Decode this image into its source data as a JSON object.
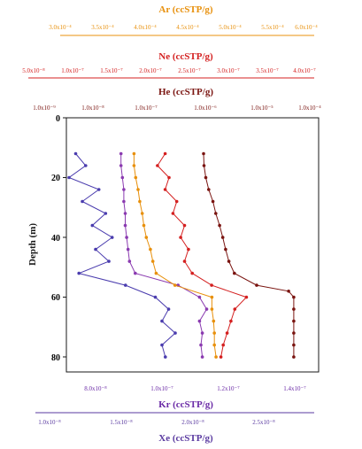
{
  "chart_data": {
    "type": "line",
    "y_axis": {
      "label": "Depth (m)",
      "ylim": [
        0,
        85
      ],
      "ticks": [
        "0",
        "20",
        "40",
        "60",
        "80"
      ],
      "inverted": true
    },
    "top_axes": [
      {
        "title": "Ar (ccSTP/g)",
        "color": "#e8900c",
        "ticks": [
          "3.0x10⁻⁴",
          "3.5x10⁻⁴",
          "4.0x10⁻⁴",
          "4.5x10⁻⁴",
          "5.0x10⁻⁴",
          "5.5x10⁻⁴",
          "6.0x10⁻⁴"
        ]
      },
      {
        "title": "Ne (ccSTP/g)",
        "color": "#d42020",
        "ticks": [
          "5.0x10⁻⁸",
          "1.0x10⁻⁷",
          "1.5x10⁻⁷",
          "2.0x10⁻⁷",
          "2.5x10⁻⁷",
          "3.0x10⁻⁷",
          "3.5x10⁻⁷",
          "4.0x10⁻⁷"
        ]
      },
      {
        "title": "He (ccSTP/g)",
        "color": "#7a1410",
        "ticks": [
          "1.0x10⁻⁹",
          "1.0x10⁻⁸",
          "1.0x10⁻⁷",
          "1.0x10⁻⁶",
          "1.0x10⁻⁵",
          "1.0x10⁻⁴"
        ]
      }
    ],
    "bottom_axes": [
      {
        "title": "Kr (ccSTP/g)",
        "color": "#6a2aa6",
        "ticks": [
          "8.0x10⁻⁸",
          "1.0x10⁻⁷",
          "1.2x10⁻⁷",
          "1.4x10⁻⁷"
        ]
      },
      {
        "title": "Xe (ccSTP/g)",
        "color": "#5a3aa0",
        "ticks": [
          "1.0x10⁻⁸",
          "1.5x10⁻⁸",
          "2.0x10⁻⁸",
          "2.5x10⁻⁸"
        ]
      }
    ],
    "series": [
      {
        "color": "#4a3cae",
        "depth_m": [
          12,
          16,
          20,
          24,
          28,
          32,
          36,
          40,
          44,
          48,
          52,
          56,
          60,
          64,
          68,
          72,
          76,
          80
        ],
        "kr_ccstp_per_g": [
          7.4e-08,
          7.7e-08,
          7.2e-08,
          8.1e-08,
          7.6e-08,
          8.3e-08,
          7.9e-08,
          8.5e-08,
          8e-08,
          8.4e-08,
          7.5e-08,
          8.9e-08,
          9.8e-08,
          1.02e-07,
          1e-07,
          1.04e-07,
          1e-07,
          1.01e-07
        ]
      },
      {
        "color": "#8a3ab0",
        "depth_m": [
          12,
          16,
          20,
          24,
          28,
          32,
          36,
          40,
          44,
          48,
          52,
          56,
          60,
          64,
          68,
          72,
          76,
          80
        ],
        "xe_ccstp_per_g": [
          1.5e-08,
          1.5e-08,
          1.51e-08,
          1.52e-08,
          1.52e-08,
          1.53e-08,
          1.53e-08,
          1.54e-08,
          1.55e-08,
          1.56e-08,
          1.6e-08,
          1.9e-08,
          2.05e-08,
          2.1e-08,
          2.05e-08,
          2.07e-08,
          2.06e-08,
          2.07e-08
        ]
      },
      {
        "color": "#e8900c",
        "depth_m": [
          12,
          16,
          20,
          24,
          28,
          32,
          36,
          40,
          44,
          48,
          52,
          56,
          60,
          64,
          68,
          72,
          76,
          80
        ],
        "ar_ccstp_per_g": [
          0.00039,
          0.00039,
          0.000392,
          0.000395,
          0.000397,
          0.0004,
          0.000402,
          0.000405,
          0.00041,
          0.000413,
          0.000417,
          0.00044,
          0.000485,
          0.000485,
          0.000487,
          0.000488,
          0.000488,
          0.00049
        ]
      },
      {
        "color": "#d42020",
        "depth_m": [
          12,
          16,
          20,
          24,
          28,
          32,
          36,
          40,
          44,
          48,
          52,
          56,
          60,
          64,
          68,
          72,
          76,
          80
        ],
        "ne_ccstp_per_g": [
          2.2e-07,
          2.1e-07,
          2.25e-07,
          2.2e-07,
          2.35e-07,
          2.3e-07,
          2.45e-07,
          2.4e-07,
          2.5e-07,
          2.45e-07,
          2.55e-07,
          2.8e-07,
          3.25e-07,
          3.1e-07,
          3.05e-07,
          3e-07,
          2.95e-07,
          2.92e-07
        ]
      },
      {
        "color": "#7a1410",
        "depth_m": [
          12,
          16,
          20,
          24,
          28,
          32,
          36,
          40,
          44,
          48,
          52,
          56,
          58,
          60,
          64,
          68,
          72,
          76,
          80
        ],
        "he_ccstp_per_g": [
          1e-06,
          1.02e-06,
          1.1e-06,
          1.25e-06,
          1.5e-06,
          1.7e-06,
          2e-06,
          2.3e-06,
          2.6e-06,
          3e-06,
          3.8e-06,
          1e-05,
          4e-05,
          5e-05,
          5e-05,
          5e-05,
          5e-05,
          5e-05,
          5e-05
        ]
      }
    ],
    "grid": false
  }
}
